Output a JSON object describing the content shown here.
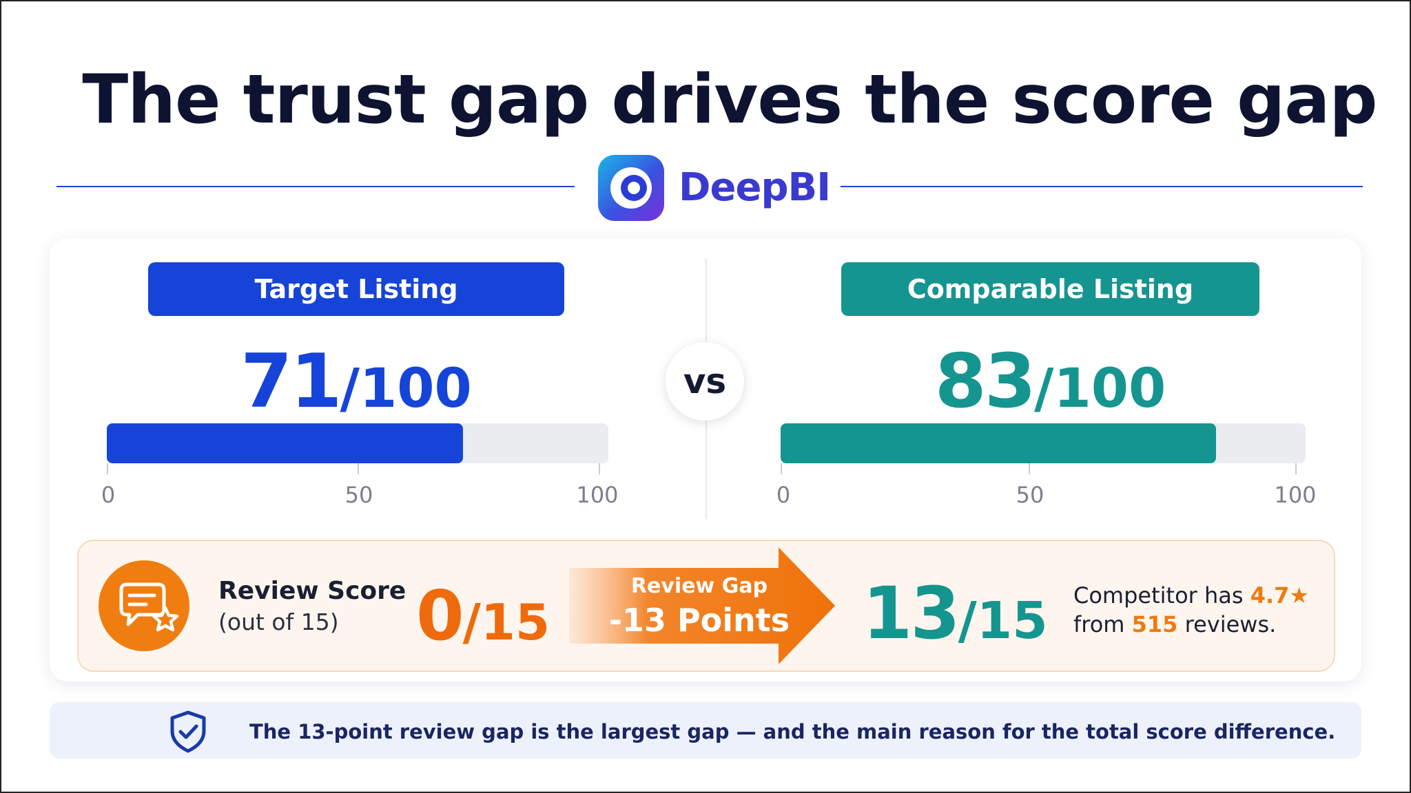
{
  "title": "The trust gap drives the score gap",
  "brand": {
    "name": "DeepBI",
    "logo_icon": "deepbi-logo-icon"
  },
  "vs_label": "vs",
  "target": {
    "label": "Target Listing",
    "score": "71",
    "max": "/100",
    "progress": 71,
    "color": "#1644d8",
    "ticks": [
      "0",
      "50",
      "100"
    ]
  },
  "comparable": {
    "label": "Comparable Listing",
    "score": "83",
    "max": "/100",
    "progress": 83,
    "color": "#15958f",
    "ticks": [
      "0",
      "50",
      "100"
    ]
  },
  "review": {
    "icon": "review-star-chat-icon",
    "label": "Review Score",
    "sublabel": "(out of 15)",
    "target_score": "0",
    "target_max": "/15",
    "gap_label": "Review Gap",
    "gap_value": "-13 Points",
    "comp_score": "13",
    "comp_max": "/15",
    "comp_text_1": "Competitor has ",
    "comp_rating": "4.7",
    "comp_star": "★",
    "comp_text_2": "from ",
    "comp_reviews": "515",
    "comp_text_3": " reviews."
  },
  "footer": {
    "icon": "shield-check-icon",
    "text": "The 13-point review gap is the largest gap — and the main reason for the total score difference."
  }
}
